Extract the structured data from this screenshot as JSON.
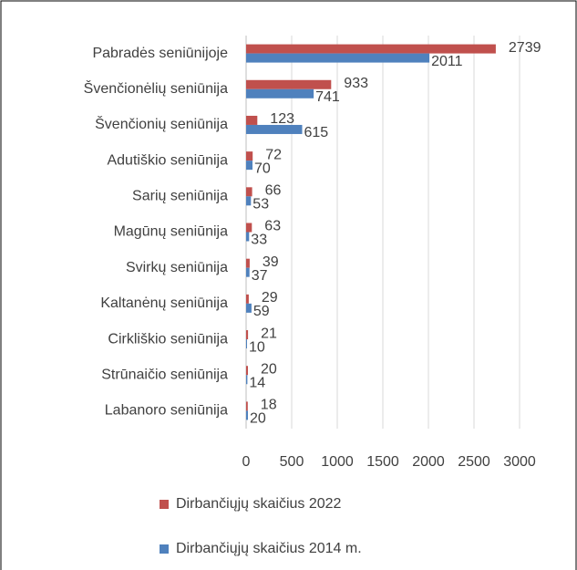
{
  "chart_data": {
    "type": "hbar",
    "categories": [
      "Pabradės seniūnijoje",
      "Švenčionėlių seniūnija",
      "Švenčionių seniūnija",
      "Adutiškio seniūnija",
      "Sarių seniūnija",
      "Magūnų seniūnija",
      "Svirkų seniūnija",
      "Kaltanėnų seniūnija",
      "Cirkliškio seniūnija",
      "Strūnaičio seniūnija",
      "Labanoro seniūnija"
    ],
    "series": [
      {
        "name": "Dirbančiųjų skaičius 2022",
        "color": "#c0504d",
        "values": [
          2739,
          933,
          123,
          72,
          66,
          63,
          39,
          29,
          21,
          20,
          18
        ]
      },
      {
        "name": "Dirbančiųjų skaičius 2014 m.",
        "color": "#4f81bd",
        "values": [
          2011,
          741,
          615,
          70,
          53,
          33,
          37,
          59,
          10,
          14,
          20
        ]
      }
    ],
    "xlim": [
      0,
      3000
    ],
    "xticks": [
      0,
      500,
      1000,
      1500,
      2000,
      2500,
      3000
    ],
    "grid": true
  }
}
